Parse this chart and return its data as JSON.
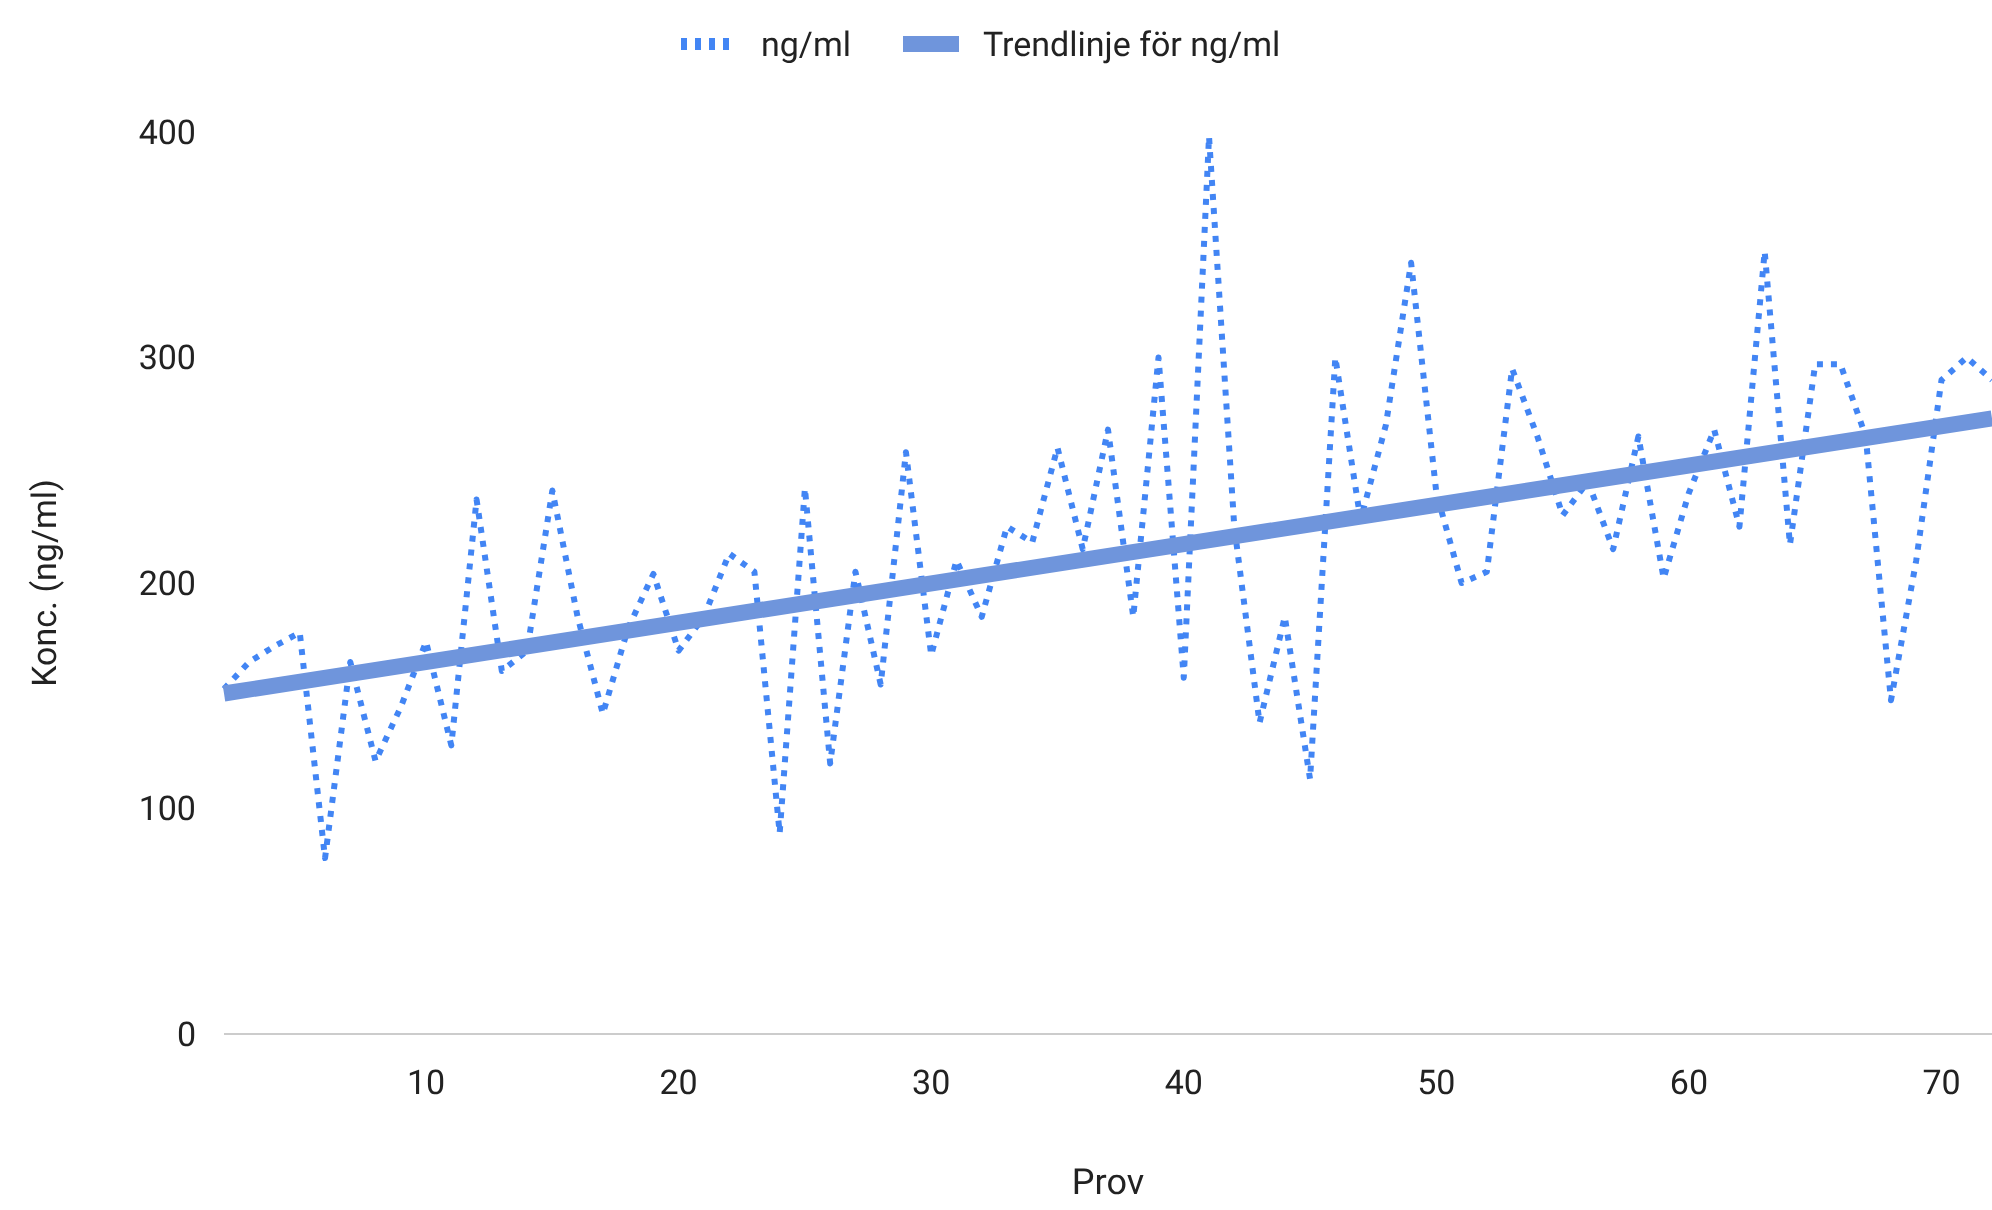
{
  "chart_data": {
    "type": "line",
    "xlabel": "Prov",
    "ylabel": "Konc. (ng/ml)",
    "xlim": [
      2,
      72
    ],
    "ylim": [
      0,
      400
    ],
    "xticks": [
      10,
      20,
      30,
      40,
      50,
      60,
      70
    ],
    "yticks": [
      0,
      100,
      200,
      300,
      400
    ],
    "legend": "top",
    "grid": false,
    "series": [
      {
        "name": "ng/ml",
        "color": "#4285f4",
        "line_style": "dotted",
        "x": [
          2,
          3,
          4,
          5,
          6,
          7,
          8,
          9,
          10,
          11,
          12,
          13,
          14,
          15,
          16,
          17,
          18,
          19,
          20,
          21,
          22,
          23,
          24,
          25,
          26,
          27,
          28,
          29,
          30,
          31,
          32,
          33,
          34,
          35,
          36,
          37,
          38,
          39,
          40,
          41,
          42,
          43,
          44,
          45,
          46,
          47,
          48,
          49,
          50,
          51,
          52,
          53,
          54,
          55,
          56,
          57,
          58,
          59,
          60,
          61,
          62,
          63,
          64,
          65,
          66,
          67,
          68,
          69,
          70,
          71,
          72
        ],
        "values": [
          153,
          165,
          172,
          178,
          78,
          165,
          121,
          145,
          174,
          128,
          237,
          161,
          170,
          241,
          185,
          142,
          180,
          204,
          170,
          185,
          213,
          205,
          89,
          242,
          120,
          205,
          155,
          258,
          168,
          210,
          185,
          225,
          218,
          260,
          215,
          268,
          185,
          300,
          158,
          398,
          225,
          138,
          185,
          113,
          300,
          228,
          270,
          342,
          240,
          200,
          205,
          295,
          265,
          230,
          245,
          215,
          265,
          202,
          240,
          268,
          225,
          347,
          217,
          297,
          297,
          265,
          148,
          210,
          290,
          300,
          290
        ]
      },
      {
        "name": "Trendlinje för ng/ml",
        "color": "#6f95dc",
        "line_style": "solid",
        "x": [
          2,
          72
        ],
        "values": [
          151,
          273
        ]
      }
    ]
  }
}
